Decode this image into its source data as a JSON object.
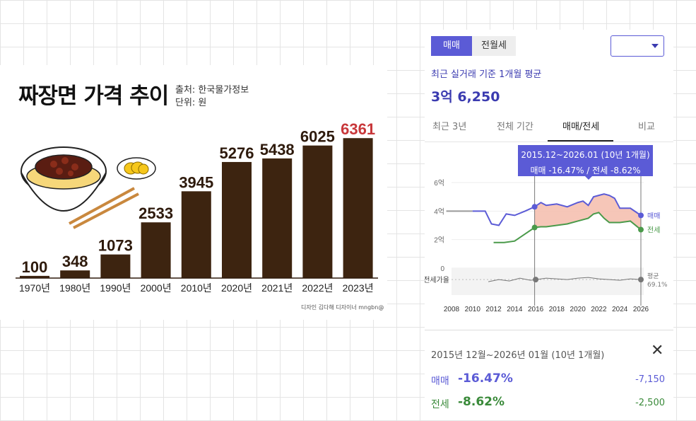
{
  "left_chart": {
    "title": "짜장면 가격 추이",
    "source_label": "출처: 한국물가정보",
    "unit_label": "단위: 원",
    "credit": "디자인 김다해 디자이너 mngbn@",
    "colors": {
      "bar": "#3d2410",
      "highlight_value": "#c8373a"
    }
  },
  "chart_data": [
    {
      "type": "bar",
      "title": "짜장면 가격 추이",
      "categories": [
        "1970년",
        "1980년",
        "1990년",
        "2000년",
        "2010년",
        "2020년",
        "2021년",
        "2022년",
        "2023년"
      ],
      "values": [
        100,
        348,
        1073,
        2533,
        3945,
        5276,
        5438,
        6025,
        6361
      ],
      "xlabel": "",
      "ylabel": "",
      "ylim": [
        0,
        6400
      ],
      "grid": false
    },
    {
      "type": "line",
      "title": "",
      "x_ticks": [
        "2008",
        "2010",
        "2012",
        "2014",
        "2016",
        "2018",
        "2020",
        "2022",
        "2024",
        "2026"
      ],
      "y_ticks": [
        "6억",
        "4억",
        "2억",
        "0"
      ],
      "xlim": [
        2007.5,
        2027
      ],
      "ylim": [
        0,
        6
      ],
      "series": [
        {
          "name": "매매",
          "color": "#5b5bd6",
          "x": [
            2007.5,
            2010,
            2011.2,
            2011.8,
            2012.5,
            2013.2,
            2014,
            2015,
            2015.9,
            2016.5,
            2017,
            2018,
            2019,
            2020,
            2020.5,
            2021,
            2021.5,
            2022,
            2022.5,
            2023,
            2023.5,
            2024,
            2025,
            2026
          ],
          "values": [
            4.0,
            4.0,
            4.0,
            3.1,
            3.0,
            3.8,
            3.7,
            4.0,
            4.3,
            4.6,
            4.4,
            4.5,
            4.3,
            4.6,
            4.7,
            4.4,
            5.0,
            5.1,
            5.2,
            5.1,
            4.9,
            4.2,
            4.2,
            3.7
          ]
        },
        {
          "name": "전세",
          "color": "#4a9a4a",
          "x": [
            2012,
            2013,
            2014,
            2015,
            2015.9,
            2016.5,
            2017,
            2018,
            2019,
            2020,
            2021,
            2021.5,
            2022,
            2022.5,
            2023,
            2024,
            2025,
            2026
          ],
          "values": [
            1.8,
            1.8,
            1.9,
            2.4,
            2.85,
            2.9,
            2.9,
            3.0,
            3.1,
            3.3,
            3.5,
            3.8,
            3.9,
            3.5,
            3.2,
            3.2,
            3.3,
            2.7
          ]
        },
        {
          "name": "전세가율",
          "color": "#777777",
          "x": [
            2011.5,
            2012.5,
            2013.5,
            2014.5,
            2015.5,
            2016,
            2017,
            2018,
            2019,
            2020,
            2021,
            2022,
            2023,
            2024,
            2025,
            2026
          ],
          "values": [
            -0.95,
            -0.8,
            -0.9,
            -0.7,
            -0.85,
            -0.8,
            -0.7,
            -0.75,
            -0.8,
            -0.7,
            -0.65,
            -0.75,
            -0.8,
            -0.85,
            -0.75,
            -0.8
          ]
        }
      ],
      "selection_range": [
        2015.9,
        2026
      ],
      "end_labels": {
        "maemae": "매매",
        "jeonse": "전세",
        "ratio_label": "평균",
        "ratio_value": "69.1%"
      },
      "ratio_axis_label": "전세가율"
    }
  ],
  "right_panel": {
    "tabs": [
      "매매",
      "전월세"
    ],
    "active_tab": "매매",
    "dropdown_value": "",
    "avg_label": "최근 실거래 기준 1개월 평균",
    "avg_value": "3억 6,250",
    "range_tabs": [
      "최근 3년",
      "전체 기간",
      "매매/전세",
      "비교"
    ],
    "active_range_tab": "매매/전세",
    "tooltip_line1": "2015.12~2026.01 (10년 1개월)",
    "tooltip_line2": "매매 -16.47%  /  전세 -8.62%",
    "colors": {
      "accent": "#5b5bd6",
      "maemae": "#5b5bd6",
      "jeonse": "#4a9a4a",
      "gap_fill": "#f4b8a6"
    },
    "summary": {
      "period": "2015년 12월~2026년 01월 (10년 1개월)",
      "close": "✕",
      "rows": [
        {
          "name": "매매",
          "pct": "-16.47%",
          "abs": "-7,150"
        },
        {
          "name": "전세",
          "pct": "-8.62%",
          "abs": "-2,500"
        }
      ]
    }
  }
}
